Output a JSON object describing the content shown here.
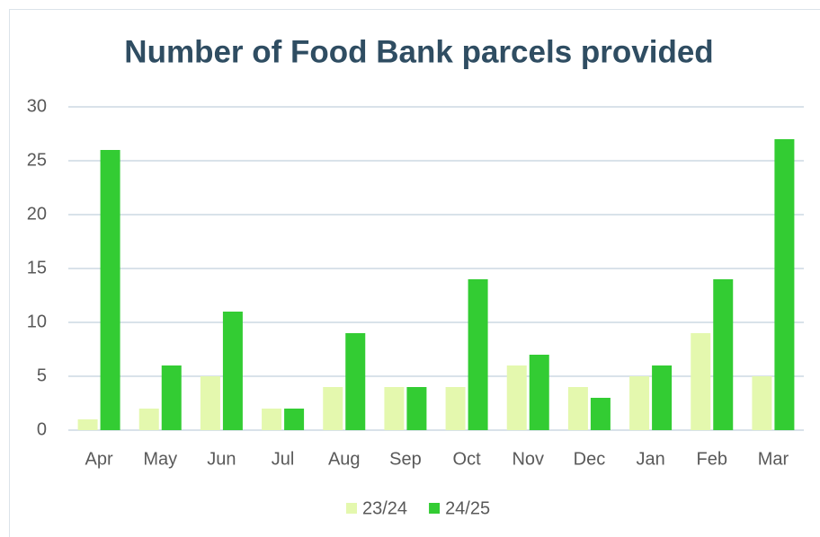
{
  "chart_data": {
    "type": "bar",
    "title": "Number of Food Bank parcels provided",
    "categories": [
      "Apr",
      "May",
      "Jun",
      "Jul",
      "Aug",
      "Sep",
      "Oct",
      "Nov",
      "Dec",
      "Jan",
      "Feb",
      "Mar"
    ],
    "series": [
      {
        "name": "23/24",
        "color": "#e4f8ae",
        "values": [
          1,
          2,
          5,
          2,
          4,
          4,
          4,
          6,
          4,
          5,
          9,
          5
        ]
      },
      {
        "name": "24/25",
        "color": "#33cc33",
        "values": [
          26,
          6,
          11,
          2,
          9,
          4,
          14,
          7,
          3,
          6,
          14,
          27
        ]
      }
    ],
    "ylim": [
      0,
      30
    ],
    "yticks": [
      0,
      5,
      10,
      15,
      20,
      25,
      30
    ],
    "grid": true,
    "legend": "bottom"
  }
}
